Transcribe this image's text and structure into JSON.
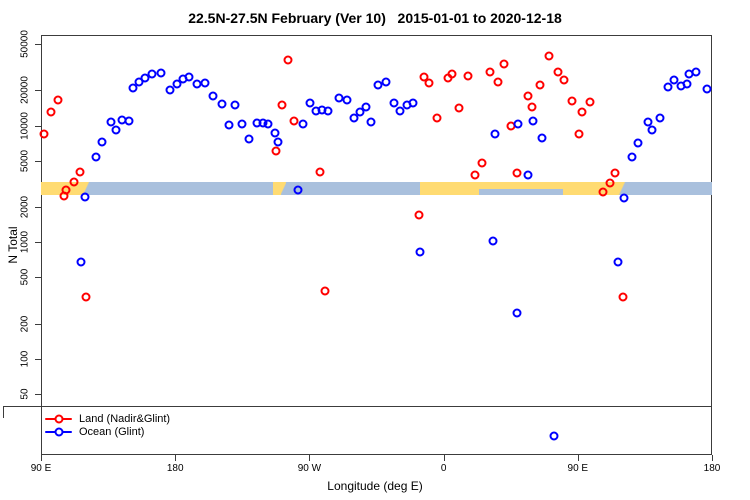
{
  "chart_data": {
    "type": "scatter",
    "title": "22.5N-27.5N February (Ver 10)   2015-01-01 to 2020-12-18",
    "xlabel": "Longitude (deg E)",
    "ylabel": "N Total",
    "x_axis": {
      "note": "axis spans 450 degrees of longitude: 90E eastward around to 180",
      "domain_axis_deg": [
        90,
        540
      ],
      "ticks": [
        {
          "deg": 90,
          "label": "90 E"
        },
        {
          "deg": 180,
          "label": "180"
        },
        {
          "deg": 270,
          "label": "90 W"
        },
        {
          "deg": 360,
          "label": "0"
        },
        {
          "deg": 450,
          "label": "90 E"
        },
        {
          "deg": 540,
          "label": "180"
        }
      ]
    },
    "y_axis": {
      "scale": "log10",
      "ticks": [
        50,
        100,
        200,
        500,
        1000,
        2000,
        5000,
        10000,
        20000,
        50000
      ],
      "range_approx": [
        15,
        60000
      ]
    },
    "legend_position": "bottom-left",
    "series": [
      {
        "name": "Land (Nadir&Glint)",
        "color": "#ff0000",
        "marker": "open-circle",
        "points": [
          [
            101.5,
            16600
          ],
          [
            96.5,
            13100
          ],
          [
            92,
            8450
          ],
          [
            116,
            4000
          ],
          [
            112,
            3280
          ],
          [
            107,
            2800
          ],
          [
            105.5,
            2490
          ],
          [
            255.5,
            36500
          ],
          [
            251.5,
            15000
          ],
          [
            260,
            10900
          ],
          [
            247.5,
            6050
          ],
          [
            277,
            4000
          ],
          [
            343.5,
            1710
          ],
          [
            347,
            26100
          ],
          [
            350,
            23200
          ],
          [
            363,
            25600
          ],
          [
            365.5,
            27600
          ],
          [
            376.5,
            26600
          ],
          [
            391,
            28800
          ],
          [
            400.5,
            33600
          ],
          [
            396.5,
            23600
          ],
          [
            416.5,
            17900
          ],
          [
            419.5,
            14400
          ],
          [
            370.5,
            14100
          ],
          [
            355.5,
            11600
          ],
          [
            386,
            4780
          ],
          [
            381,
            3770
          ],
          [
            405,
            9910
          ],
          [
            409,
            3920
          ],
          [
            424.5,
            22200
          ],
          [
            431,
            39400
          ],
          [
            436.5,
            28800
          ],
          [
            441,
            24500
          ],
          [
            446,
            16200
          ],
          [
            453,
            13100
          ],
          [
            458,
            15900
          ],
          [
            451,
            8450
          ],
          [
            467,
            2690
          ],
          [
            471.5,
            3220
          ],
          [
            475,
            3920
          ],
          [
            120,
            339
          ],
          [
            280.5,
            382
          ],
          [
            480.5,
            339
          ]
        ]
      },
      {
        "name": "Ocean (Glint)",
        "color": "#0000ff",
        "marker": "open-circle",
        "points": [
          [
            119.5,
            2440
          ],
          [
            127,
            5380
          ],
          [
            131,
            7230
          ],
          [
            137,
            10700
          ],
          [
            140.5,
            9160
          ],
          [
            144.5,
            11200
          ],
          [
            149,
            10900
          ],
          [
            151.5,
            21000
          ],
          [
            155.5,
            23600
          ],
          [
            159.5,
            25600
          ],
          [
            164.5,
            27600
          ],
          [
            170.5,
            28200
          ],
          [
            176.5,
            20200
          ],
          [
            181,
            22700
          ],
          [
            185,
            25100
          ],
          [
            189.5,
            26100
          ],
          [
            194.5,
            22700
          ],
          [
            200,
            23200
          ],
          [
            205.5,
            17900
          ],
          [
            211.5,
            15300
          ],
          [
            220,
            15000
          ],
          [
            216,
            10100
          ],
          [
            225,
            10300
          ],
          [
            229.5,
            7670
          ],
          [
            235,
            10500
          ],
          [
            239,
            10500
          ],
          [
            242,
            10300
          ],
          [
            247,
            8630
          ],
          [
            249,
            7230
          ],
          [
            265.5,
            10300
          ],
          [
            270.5,
            15600
          ],
          [
            274.5,
            13300
          ],
          [
            278.5,
            13600
          ],
          [
            282.5,
            13300
          ],
          [
            290,
            17200
          ],
          [
            295,
            16600
          ],
          [
            300,
            11600
          ],
          [
            304,
            13100
          ],
          [
            308,
            14400
          ],
          [
            311.5,
            10700
          ],
          [
            316,
            22200
          ],
          [
            321.5,
            23600
          ],
          [
            326.5,
            15600
          ],
          [
            331,
            13300
          ],
          [
            335.5,
            15000
          ],
          [
            339.5,
            15600
          ],
          [
            394.5,
            8450
          ],
          [
            410,
            10300
          ],
          [
            420,
            10900
          ],
          [
            426,
            7820
          ],
          [
            416.5,
            3770
          ],
          [
            262.5,
            2800
          ],
          [
            481,
            2390
          ],
          [
            486.5,
            5380
          ],
          [
            490.5,
            7090
          ],
          [
            497,
            10700
          ],
          [
            500,
            9160
          ],
          [
            505,
            11600
          ],
          [
            510.5,
            21400
          ],
          [
            514.5,
            24500
          ],
          [
            519,
            21800
          ],
          [
            523,
            22700
          ],
          [
            524.5,
            27600
          ],
          [
            529.5,
            28800
          ],
          [
            536.5,
            20600
          ],
          [
            117,
            676
          ],
          [
            344,
            824
          ],
          [
            393,
            1020
          ],
          [
            409,
            247
          ],
          [
            477,
            676
          ],
          [
            434,
            22
          ]
        ]
      }
    ],
    "surface_band": {
      "description": "land/ocean strip for the 22.5N-27.5N latitude band vs longitude",
      "n_value_top": 3100,
      "n_value_bottom": 2400,
      "land_color": "#ffdb72",
      "ocean_color": "#a9c0dd",
      "segments": [
        {
          "from": 90,
          "to": 118,
          "type": "land"
        },
        {
          "from": 118,
          "to": 122,
          "type": "coast"
        },
        {
          "from": 122,
          "to": 245.5,
          "type": "ocean"
        },
        {
          "from": 245.5,
          "to": 251,
          "type": "land"
        },
        {
          "from": 251,
          "to": 254.5,
          "type": "coast"
        },
        {
          "from": 254.5,
          "to": 344,
          "type": "ocean"
        },
        {
          "from": 344,
          "to": 384,
          "type": "land"
        },
        {
          "from": 384,
          "to": 440,
          "type": "mixed"
        },
        {
          "from": 440,
          "to": 477,
          "type": "land"
        },
        {
          "from": 477,
          "to": 482,
          "type": "coast"
        },
        {
          "from": 482,
          "to": 540,
          "type": "ocean"
        }
      ]
    }
  }
}
